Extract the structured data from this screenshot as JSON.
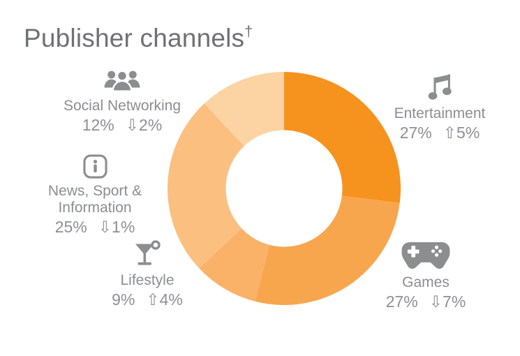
{
  "title": {
    "text": "Publisher channels",
    "footnote_mark": "†"
  },
  "colors": {
    "title_text": "#6e7073",
    "label_text": "#8b8d90",
    "icon_gray": "#8b8d8f",
    "background": "#ffffff"
  },
  "chart_data": {
    "type": "pie",
    "subtype": "donut",
    "title": "Publisher channels†",
    "start_angle_deg": 0,
    "direction": "clockwise",
    "inner_radius_ratio": 0.5,
    "legend_position": "around",
    "segments": [
      {
        "label": "Entertainment",
        "value": 27,
        "value_text": "27%",
        "change_direction": "up",
        "change_value": 5,
        "change_text": "⇧5%",
        "color": "#F6921E",
        "icon": "music-notes-icon"
      },
      {
        "label": "Games",
        "value": 27,
        "value_text": "27%",
        "change_direction": "down",
        "change_value": 7,
        "change_text": "⇩7%",
        "color": "#F8A64D",
        "icon": "gamepad-icon"
      },
      {
        "label": "Lifestyle",
        "value": 9,
        "value_text": "9%",
        "change_direction": "up",
        "change_value": 4,
        "change_text": "⇧4%",
        "color": "#FAB168",
        "icon": "cocktail-icon"
      },
      {
        "label": "News, Sport & Information",
        "value": 25,
        "value_text": "25%",
        "change_direction": "down",
        "change_value": 1,
        "change_text": "⇩1%",
        "color": "#FBBF80",
        "icon": "info-icon"
      },
      {
        "label": "Social Networking",
        "value": 12,
        "value_text": "12%",
        "change_direction": "down",
        "change_value": 2,
        "change_text": "⇩2%",
        "color": "#FCD4A4",
        "icon": "people-icon"
      }
    ]
  }
}
